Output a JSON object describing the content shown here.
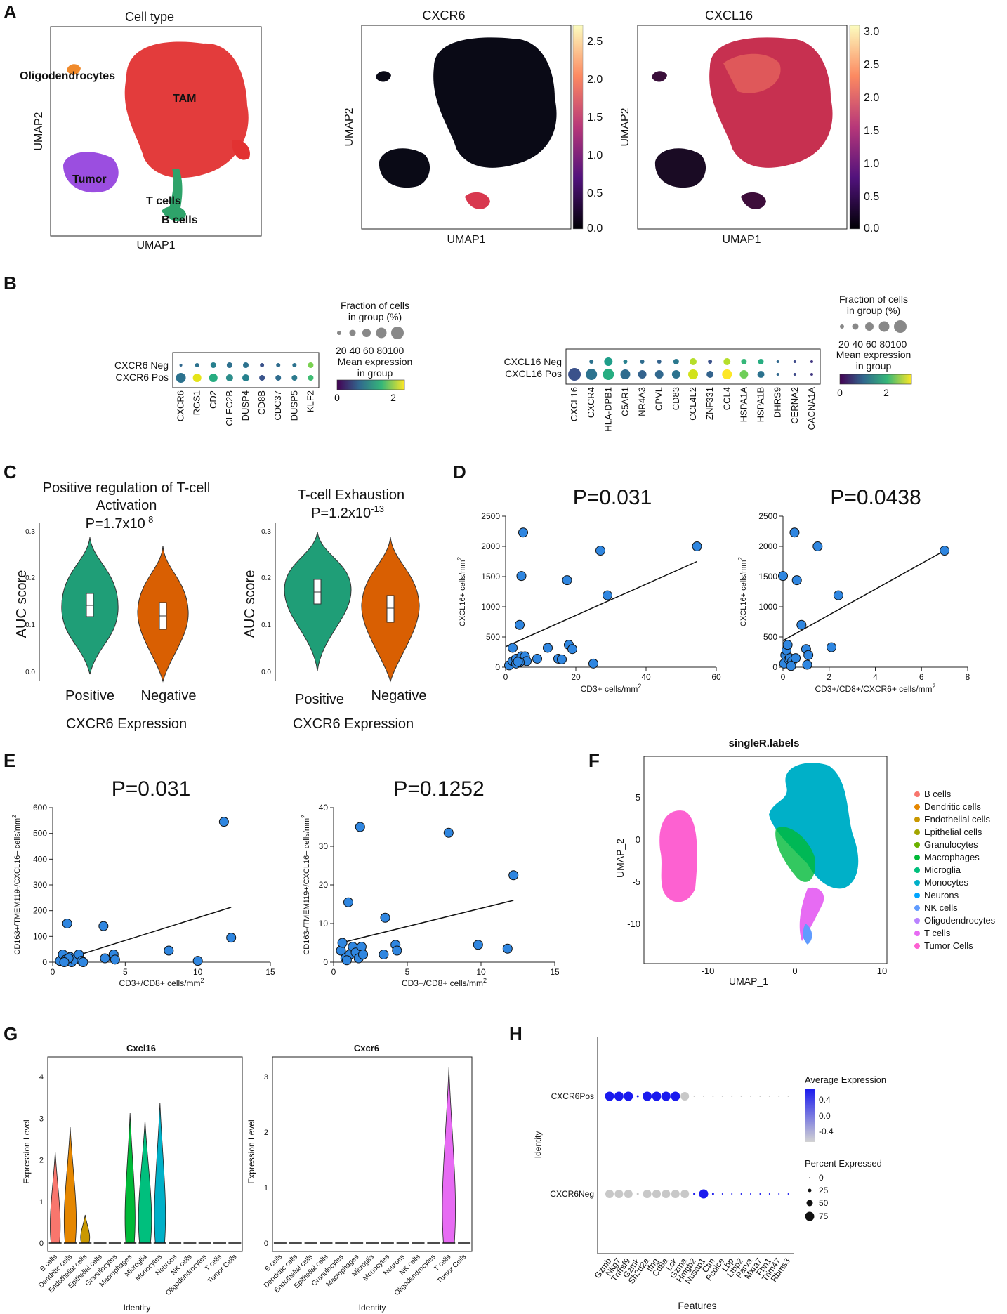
{
  "panels": {
    "A": "A",
    "B": "B",
    "C": "C",
    "D": "D",
    "E": "E",
    "F": "F",
    "G": "G",
    "H": "H"
  },
  "colors": {
    "tam": "#e23232",
    "oligo": "#f08a2b",
    "tumor": "#9b4ee0",
    "tcell": "#2ea36a",
    "violet_green": "#1f9e77",
    "violet_orange": "#d95f02",
    "scatter": "#2f86e0",
    "hpos": "#1a1aee",
    "hgray": "#c8c8c8"
  },
  "panel_a": {
    "umap1": {
      "title": "Cell type",
      "xlabel": "UMAP1",
      "ylabel": "UMAP2",
      "labels": [
        "Oligodendrocytes",
        "TAM",
        "Tumor",
        "T cells",
        "B cells"
      ]
    },
    "umap2": {
      "title": "CXCR6",
      "xlabel": "UMAP1",
      "ylabel": "UMAP2",
      "colorbar_ticks": [
        "2.5",
        "2.0",
        "1.5",
        "1.0",
        "0.5",
        "0.0"
      ]
    },
    "umap3": {
      "title": "CXCL16",
      "xlabel": "UMAP1",
      "ylabel": "UMAP2",
      "colorbar_ticks": [
        "3.0",
        "2.5",
        "2.0",
        "1.5",
        "1.0",
        "0.5",
        "0.0"
      ]
    }
  },
  "panel_b": {
    "left": {
      "rows": [
        "CXCR6 Neg",
        "CXCR6 Pos"
      ],
      "genes": [
        "CXCR6",
        "RGS1",
        "CD2",
        "CLEC2B",
        "DUSP4",
        "CD8B",
        "CDC37",
        "DUSP5",
        "KLF2"
      ],
      "legend_fraction": "Fraction of cells",
      "legend_fraction2": "in group (%)",
      "legend_ticks": "20 40 60 80100",
      "legend_mean": "Mean expression",
      "legend_mean2": "in group",
      "cbar_ticks": [
        "0",
        "2"
      ]
    },
    "right": {
      "rows": [
        "CXCL16 Neg",
        "CXCL16 Pos"
      ],
      "genes": [
        "CXCL16",
        "CXCR4",
        "HLA-DPB1",
        "C5AR1",
        "NR4A3",
        "CPVL",
        "CD83",
        "CCL4L2",
        "ZNF331",
        "CCL4",
        "HSPA1A",
        "HSPA1B",
        "DHRS9",
        "CERNA2",
        "CACNA1A"
      ],
      "legend_fraction": "Fraction of cells",
      "legend_fraction2": "in group (%)",
      "legend_ticks": "20 40 60 80100",
      "legend_mean": "Mean expression",
      "legend_mean2": "in group",
      "cbar_ticks": [
        "0",
        "2"
      ]
    }
  },
  "panel_c": {
    "left": {
      "title1": "Positive regulation of T-cell",
      "title2": "Activation",
      "pval": "P=1.7x10",
      "pexp": "-8",
      "ylabel": "AUC score",
      "xlabel": "CXCR6 Expression",
      "groups": [
        "Positive",
        "Negative"
      ],
      "yticks": [
        "0.3",
        "0.2",
        "0.1",
        "0.0"
      ]
    },
    "right": {
      "title1": "T-cell Exhaustion",
      "pval": "P=1.2x10",
      "pexp": "-13",
      "ylabel": "AUC score",
      "xlabel": "CXCR6 Expression",
      "groups": [
        "Positive",
        "Negative"
      ],
      "yticks": [
        "0.3",
        "0.2",
        "0.1",
        "0.0"
      ]
    }
  },
  "chart_data": [
    {
      "type": "scatter",
      "id": "D1",
      "title": "P=0.031",
      "xlabel": "CD3+ cells/mm",
      "xlabel_sup": "2",
      "ylabel": "CXCL16+ cells/mm",
      "ylabel_sup": "2",
      "xlim": [
        0,
        60
      ],
      "ylim": [
        0,
        2500
      ],
      "xticks": [
        0,
        20,
        40,
        60
      ],
      "yticks": [
        0,
        500,
        1000,
        1500,
        2000,
        2500
      ],
      "x": [
        1,
        2,
        2,
        3,
        3,
        4,
        4.5,
        4.5,
        5,
        5.5,
        6,
        9,
        12,
        15,
        16,
        17.5,
        18,
        19,
        25,
        27,
        29,
        54.5,
        4,
        3.5
      ],
      "y": [
        30,
        100,
        320,
        60,
        140,
        700,
        180,
        1510,
        2230,
        180,
        100,
        140,
        320,
        140,
        130,
        1440,
        370,
        300,
        60,
        1930,
        1190,
        2000,
        80,
        90
      ],
      "fit": {
        "x": [
          0,
          54.5
        ],
        "y": [
          340,
          1750
        ]
      }
    },
    {
      "type": "scatter",
      "id": "D2",
      "title": "P=0.0438",
      "xlabel": "CD3+/CD8+/CXCR6+ cells/mm",
      "xlabel_sup": "2",
      "ylabel": "CXCL16+ cells/mm",
      "ylabel_sup": "2",
      "xlim": [
        0,
        8
      ],
      "ylim": [
        0,
        2500
      ],
      "xticks": [
        0,
        2,
        4,
        6,
        8
      ],
      "yticks": [
        0,
        500,
        1000,
        1500,
        2000,
        2500
      ],
      "x": [
        0,
        0.05,
        0.1,
        0.15,
        0.2,
        0.25,
        0.3,
        0.4,
        0.5,
        0.55,
        0.6,
        0.8,
        1.0,
        1.05,
        1.1,
        1.5,
        2.1,
        2.4,
        7.0,
        0.35
      ],
      "y": [
        1510,
        60,
        200,
        280,
        370,
        130,
        150,
        100,
        2230,
        150,
        1440,
        700,
        300,
        40,
        200,
        2000,
        330,
        1190,
        1930,
        20
      ],
      "fit": {
        "x": [
          0,
          7.0
        ],
        "y": [
          440,
          1930
        ]
      }
    },
    {
      "type": "scatter",
      "id": "E1",
      "title": "P=0.031",
      "xlabel": "CD3+/CD8+ cells/mm",
      "xlabel_sup": "2",
      "ylabel": "CD163+/TMEM119-/CXCL16+ cells/mm",
      "ylabel_sup": "2",
      "xlim": [
        0,
        15
      ],
      "ylim": [
        0,
        600
      ],
      "xticks": [
        0,
        5,
        10,
        15
      ],
      "yticks": [
        0,
        100,
        200,
        300,
        400,
        500,
        600
      ],
      "x": [
        0.5,
        0.7,
        0.9,
        1.0,
        1.2,
        1.3,
        1.5,
        1.8,
        2.0,
        2.1,
        3.5,
        3.6,
        4.2,
        4.3,
        8.0,
        10.0,
        11.8,
        12.3,
        1.1,
        0.8
      ],
      "y": [
        5,
        30,
        10,
        150,
        20,
        0,
        10,
        30,
        5,
        0,
        140,
        15,
        30,
        10,
        45,
        5,
        545,
        95,
        15,
        0
      ],
      "fit": {
        "x": [
          0.5,
          12.3
        ],
        "y": [
          5,
          213
        ]
      }
    },
    {
      "type": "scatter",
      "id": "E2",
      "title": "P=0.1252",
      "xlabel": "CD3+/CD8+ cells/mm",
      "xlabel_sup": "2",
      "ylabel": "CD163-/TMEM119+/CXCL16+ cells/mm",
      "ylabel_sup": "2",
      "xlim": [
        0,
        15
      ],
      "ylim": [
        0,
        40
      ],
      "xticks": [
        0,
        5,
        10,
        15
      ],
      "yticks": [
        0,
        10,
        20,
        30,
        40
      ],
      "x": [
        0.5,
        0.6,
        0.8,
        1.0,
        1.1,
        1.3,
        1.5,
        1.7,
        1.8,
        1.9,
        2.0,
        3.4,
        3.5,
        4.2,
        4.3,
        7.8,
        9.8,
        11.8,
        12.2,
        0.9
      ],
      "y": [
        3,
        5,
        1,
        15.5,
        2,
        4,
        2.5,
        1,
        35,
        4,
        2,
        2,
        11.5,
        4.5,
        3,
        33.5,
        4.5,
        3.5,
        22.5,
        0.5
      ],
      "fit": {
        "x": [
          0.5,
          12.2
        ],
        "y": [
          5,
          16
        ]
      }
    }
  ],
  "panel_f": {
    "title": "singleR.labels",
    "xlabel": "UMAP_1",
    "ylabel": "UMAP_2",
    "xticks": [
      "-10",
      "0",
      "10"
    ],
    "yticks": [
      "5",
      "0",
      "-5",
      "-10"
    ],
    "legend": [
      {
        "label": "B cells",
        "color": "#f8766d"
      },
      {
        "label": "Dendritic cells",
        "color": "#e58700"
      },
      {
        "label": "Endothelial cells",
        "color": "#c99800"
      },
      {
        "label": "Epithelial cells",
        "color": "#a3a500"
      },
      {
        "label": "Granulocytes",
        "color": "#6bb100"
      },
      {
        "label": "Macrophages",
        "color": "#00ba38"
      },
      {
        "label": "Microglia",
        "color": "#00bf7d"
      },
      {
        "label": "Monocytes",
        "color": "#00b0c8"
      },
      {
        "label": "Neurons",
        "color": "#00a5ff"
      },
      {
        "label": "NK cells",
        "color": "#619cff"
      },
      {
        "label": "Oligodendrocytes",
        "color": "#b983ff"
      },
      {
        "label": "T cells",
        "color": "#e76bf3"
      },
      {
        "label": "Tumor Cells",
        "color": "#fd61d1"
      }
    ]
  },
  "panel_g": {
    "left": {
      "title": "Cxcl16",
      "ylabel": "Expression Level",
      "xlabel": "Identity",
      "yticks": [
        "0",
        "1",
        "2",
        "3",
        "4"
      ]
    },
    "right": {
      "title": "Cxcr6",
      "ylabel": "Expression Level",
      "xlabel": "Identity",
      "yticks": [
        "0",
        "1",
        "2",
        "3"
      ]
    },
    "identities": [
      "B cells",
      "Dendritic cells",
      "Endothelial cells",
      "Epithelial cells",
      "Granulocytes",
      "Macrophages",
      "Microglia",
      "Monocytes",
      "Neurons",
      "NK cells",
      "Oligodendrocytes",
      "T cells",
      "Tumor Cells"
    ]
  },
  "panel_h": {
    "ylabel": "Identity",
    "xlabel": "Features",
    "rows": [
      "CXCR6Pos",
      "CXCR6Neg"
    ],
    "features": [
      "Gzmb",
      "Nkg7",
      "Tnfrsf9",
      "Gzmk",
      "Sh2d2a",
      "Ifng",
      "Cd8a",
      "Lck",
      "Gzma",
      "Hmgb2",
      "Nusap1",
      "Ctm",
      "Pcolce",
      "Lbp",
      "Ltbp2",
      "Parva",
      "Mxra7",
      "Fbn1",
      "Trim47",
      "Rbms3"
    ],
    "legend_avg": "Average Expression",
    "avg_ticks": [
      "0.4",
      "0.0",
      "-0.4"
    ],
    "legend_pct": "Percent Expressed",
    "pct_ticks": [
      "0",
      "25",
      "50",
      "75"
    ]
  }
}
